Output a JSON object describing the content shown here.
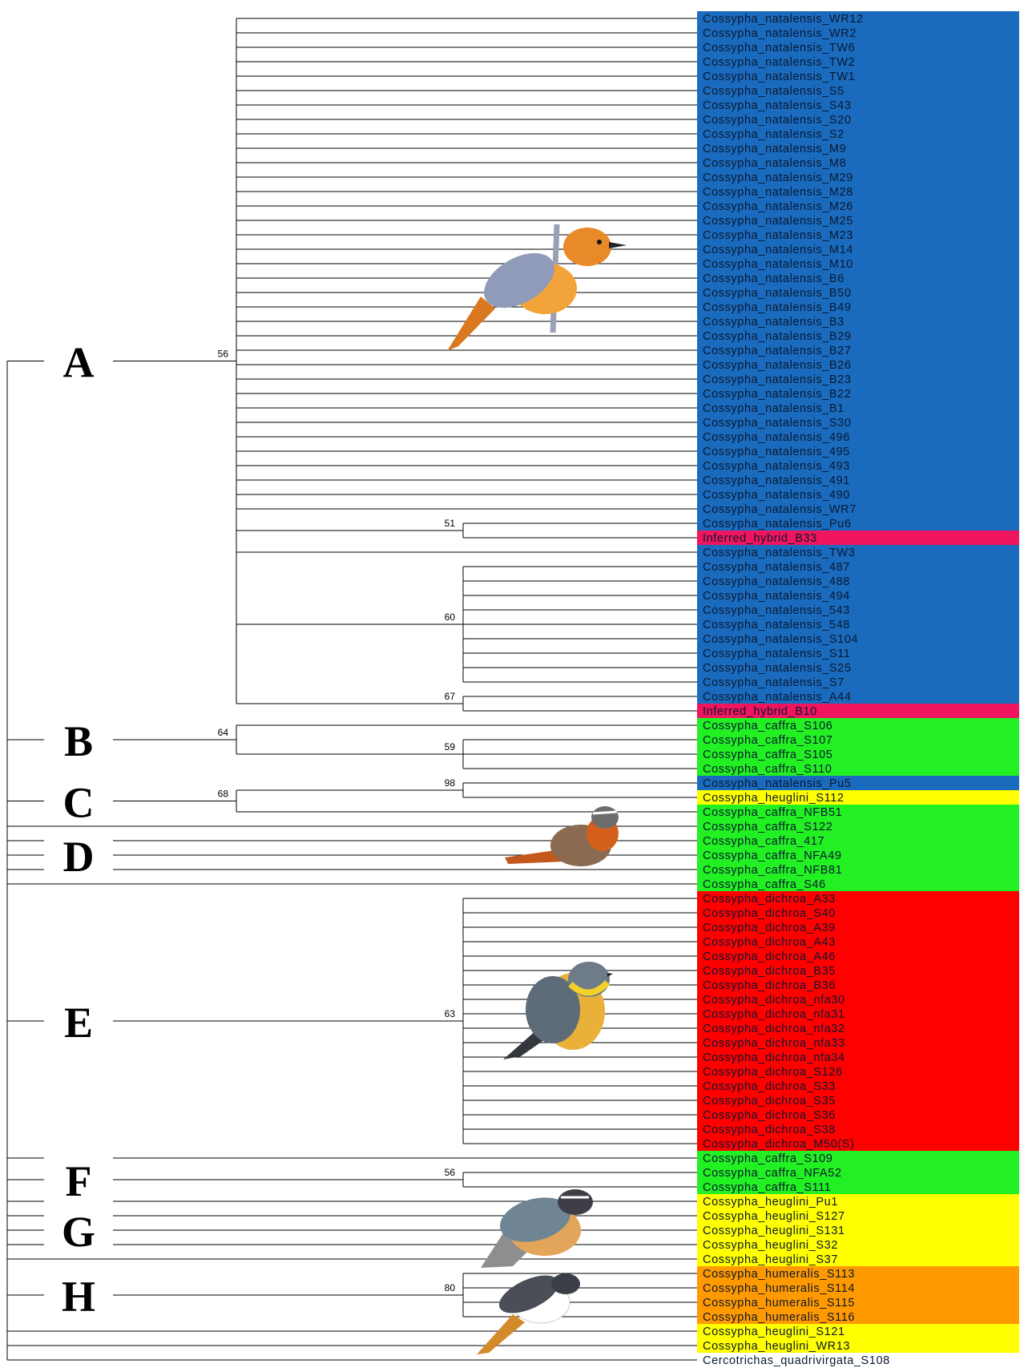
{
  "leaves": [
    {
      "label": "Cossypha_natalensis_WR12",
      "color": "#1a6bbd"
    },
    {
      "label": "Cossypha_natalensis_WR2",
      "color": "#1a6bbd"
    },
    {
      "label": "Cossypha_natalensis_TW6",
      "color": "#1a6bbd"
    },
    {
      "label": "Cossypha_natalensis_TW2",
      "color": "#1a6bbd"
    },
    {
      "label": "Cossypha_natalensis_TW1",
      "color": "#1a6bbd"
    },
    {
      "label": "Cossypha_natalensis_S5",
      "color": "#1a6bbd"
    },
    {
      "label": "Cossypha_natalensis_S43",
      "color": "#1a6bbd"
    },
    {
      "label": "Cossypha_natalensis_S20",
      "color": "#1a6bbd"
    },
    {
      "label": "Cossypha_natalensis_S2",
      "color": "#1a6bbd"
    },
    {
      "label": "Cossypha_natalensis_M9",
      "color": "#1a6bbd"
    },
    {
      "label": "Cossypha_natalensis_M8",
      "color": "#1a6bbd"
    },
    {
      "label": "Cossypha_natalensis_M29",
      "color": "#1a6bbd"
    },
    {
      "label": "Cossypha_natalensis_M28",
      "color": "#1a6bbd"
    },
    {
      "label": "Cossypha_natalensis_M26",
      "color": "#1a6bbd"
    },
    {
      "label": "Cossypha_natalensis_M25",
      "color": "#1a6bbd"
    },
    {
      "label": "Cossypha_natalensis_M23",
      "color": "#1a6bbd"
    },
    {
      "label": "Cossypha_natalensis_M14",
      "color": "#1a6bbd"
    },
    {
      "label": "Cossypha_natalensis_M10",
      "color": "#1a6bbd"
    },
    {
      "label": "Cossypha_natalensis_B6",
      "color": "#1a6bbd"
    },
    {
      "label": "Cossypha_natalensis_B50",
      "color": "#1a6bbd"
    },
    {
      "label": "Cossypha_natalensis_B49",
      "color": "#1a6bbd"
    },
    {
      "label": "Cossypha_natalensis_B3",
      "color": "#1a6bbd"
    },
    {
      "label": "Cossypha_natalensis_B29",
      "color": "#1a6bbd"
    },
    {
      "label": "Cossypha_natalensis_B27",
      "color": "#1a6bbd"
    },
    {
      "label": "Cossypha_natalensis_B26",
      "color": "#1a6bbd"
    },
    {
      "label": "Cossypha_natalensis_B23",
      "color": "#1a6bbd"
    },
    {
      "label": "Cossypha_natalensis_B22",
      "color": "#1a6bbd"
    },
    {
      "label": "Cossypha_natalensis_B1",
      "color": "#1a6bbd"
    },
    {
      "label": "Cossypha_natalensis_S30",
      "color": "#1a6bbd"
    },
    {
      "label": "Cossypha_natalensis_496",
      "color": "#1a6bbd"
    },
    {
      "label": "Cossypha_natalensis_495",
      "color": "#1a6bbd"
    },
    {
      "label": "Cossypha_natalensis_493",
      "color": "#1a6bbd"
    },
    {
      "label": "Cossypha_natalensis_491",
      "color": "#1a6bbd"
    },
    {
      "label": "Cossypha_natalensis_490",
      "color": "#1a6bbd"
    },
    {
      "label": "Cossypha_natalensis_WR7",
      "color": "#1a6bbd"
    },
    {
      "label": "Cossypha_natalensis_Pu6",
      "color": "#1a6bbd"
    },
    {
      "label": "Inferred_hybrid_B33",
      "color": "#f0155f"
    },
    {
      "label": "Cossypha_natalensis_TW3",
      "color": "#1a6bbd"
    },
    {
      "label": "Cossypha_natalensis_487",
      "color": "#1a6bbd"
    },
    {
      "label": "Cossypha_natalensis_488",
      "color": "#1a6bbd"
    },
    {
      "label": "Cossypha_natalensis_494",
      "color": "#1a6bbd"
    },
    {
      "label": "Cossypha_natalensis_543",
      "color": "#1a6bbd"
    },
    {
      "label": "Cossypha_natalensis_548",
      "color": "#1a6bbd"
    },
    {
      "label": "Cossypha_natalensis_S104",
      "color": "#1a6bbd"
    },
    {
      "label": "Cossypha_natalensis_S11",
      "color": "#1a6bbd"
    },
    {
      "label": "Cossypha_natalensis_S25",
      "color": "#1a6bbd"
    },
    {
      "label": "Cossypha_natalensis_S7",
      "color": "#1a6bbd"
    },
    {
      "label": "Cossypha_natalensis_A44",
      "color": "#1a6bbd"
    },
    {
      "label": "Inferred_hybrid_B10",
      "color": "#f0155f"
    },
    {
      "label": "Cossypha_caffra_S106",
      "color": "#22f022"
    },
    {
      "label": "Cossypha_caffra_S107",
      "color": "#22f022"
    },
    {
      "label": "Cossypha_caffra_S105",
      "color": "#22f022"
    },
    {
      "label": "Cossypha_caffra_S110",
      "color": "#22f022"
    },
    {
      "label": "Cossypha_natalensis_Pu5",
      "color": "#1a6bbd"
    },
    {
      "label": "Cossypha_heuglini_S112",
      "color": "#ffff00"
    },
    {
      "label": "Cossypha_caffra_NFB51",
      "color": "#22f022"
    },
    {
      "label": "Cossypha_caffra_S122",
      "color": "#22f022"
    },
    {
      "label": "Cossypha_caffra_417",
      "color": "#22f022"
    },
    {
      "label": "Cossypha_caffra_NFA49",
      "color": "#22f022"
    },
    {
      "label": "Cossypha_caffra_NFB81",
      "color": "#22f022"
    },
    {
      "label": "Cossypha_caffra_S46",
      "color": "#22f022"
    },
    {
      "label": "Cossypha_dichroa_A33",
      "color": "#ff0000"
    },
    {
      "label": "Cossypha_dichroa_S40",
      "color": "#ff0000"
    },
    {
      "label": "Cossypha_dichroa_A39",
      "color": "#ff0000"
    },
    {
      "label": "Cossypha_dichroa_A43",
      "color": "#ff0000"
    },
    {
      "label": "Cossypha_dichroa_A46",
      "color": "#ff0000"
    },
    {
      "label": "Cossypha_dichroa_B35",
      "color": "#ff0000"
    },
    {
      "label": "Cossypha_dichroa_B36",
      "color": "#ff0000"
    },
    {
      "label": "Cossypha_dichroa_nfa30",
      "color": "#ff0000"
    },
    {
      "label": "Cossypha_dichroa_nfa31",
      "color": "#ff0000"
    },
    {
      "label": "Cossypha_dichroa_nfa32",
      "color": "#ff0000"
    },
    {
      "label": "Cossypha_dichroa_nfa33",
      "color": "#ff0000"
    },
    {
      "label": "Cossypha_dichroa_nfa34",
      "color": "#ff0000"
    },
    {
      "label": "Cossypha_dichroa_S126",
      "color": "#ff0000"
    },
    {
      "label": "Cossypha_dichroa_S33",
      "color": "#ff0000"
    },
    {
      "label": "Cossypha_dichroa_S35",
      "color": "#ff0000"
    },
    {
      "label": "Cossypha_dichroa_S36",
      "color": "#ff0000"
    },
    {
      "label": "Cossypha_dichroa_S38",
      "color": "#ff0000"
    },
    {
      "label": "Cossypha_dichroa_M50(S)",
      "color": "#ff0000"
    },
    {
      "label": "Cossypha_caffra_S109",
      "color": "#22f022"
    },
    {
      "label": "Cossypha_caffra_NFA52",
      "color": "#22f022"
    },
    {
      "label": "Cossypha_caffra_S111",
      "color": "#22f022"
    },
    {
      "label": "Cossypha_heuglini_Pu1",
      "color": "#ffff00"
    },
    {
      "label": "Cossypha_heuglini_S127",
      "color": "#ffff00"
    },
    {
      "label": "Cossypha_heuglini_S131",
      "color": "#ffff00"
    },
    {
      "label": "Cossypha_heuglini_S32",
      "color": "#ffff00"
    },
    {
      "label": "Cossypha_heuglini_S37",
      "color": "#ffff00"
    },
    {
      "label": "Cossypha_humeralis_S113",
      "color": "#ff9900"
    },
    {
      "label": "Cossypha_humeralis_S114",
      "color": "#ff9900"
    },
    {
      "label": "Cossypha_humeralis_S115",
      "color": "#ff9900"
    },
    {
      "label": "Cossypha_humeralis_S116",
      "color": "#ff9900"
    },
    {
      "label": "Cossypha_heuglini_S121",
      "color": "#ffff00"
    },
    {
      "label": "Cossypha_heuglini_WR13",
      "color": "#ffff00"
    },
    {
      "label": "Cercotrichas_quadrivirgata_S108"
    }
  ],
  "clade_labels": [
    "A",
    "B",
    "C",
    "D",
    "E",
    "F",
    "G",
    "H"
  ],
  "support_values": [
    56,
    51,
    60,
    67,
    64,
    59,
    68,
    98,
    63,
    56,
    80
  ]
}
